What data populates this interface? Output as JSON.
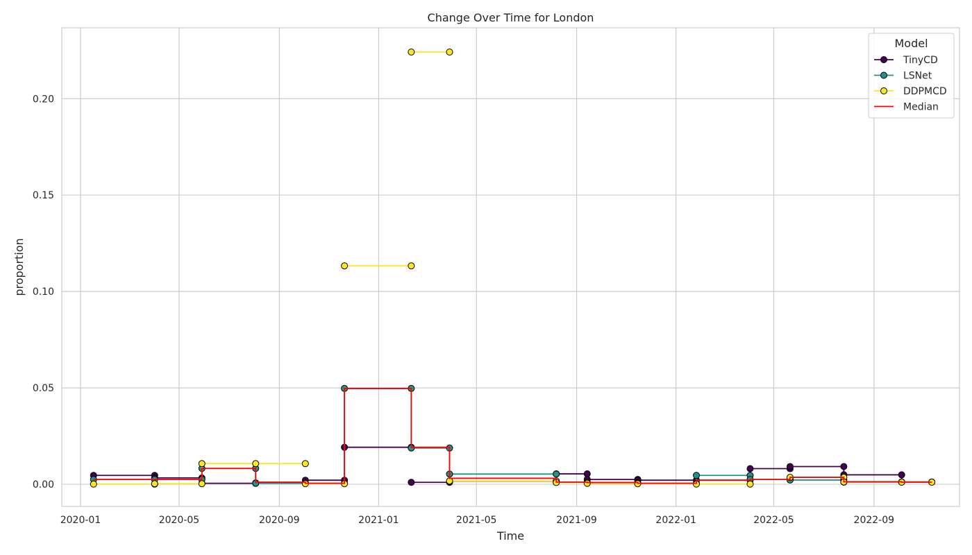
{
  "chart_data": {
    "type": "line",
    "title": "Change Over Time for London",
    "xlabel": "Time",
    "ylabel": "proportion",
    "x_axis_type": "date",
    "xlim": [
      "2019-12-09",
      "2022-12-15"
    ],
    "ylim": [
      -0.0115,
      0.2368
    ],
    "x_ticks": [
      "2020-01",
      "2020-05",
      "2020-09",
      "2021-01",
      "2021-05",
      "2021-09",
      "2022-01",
      "2022-05",
      "2022-09"
    ],
    "y_ticks": [
      "0.00",
      "0.05",
      "0.10",
      "0.15",
      "0.20"
    ],
    "grid": true,
    "step": "post",
    "legend": {
      "title": "Model",
      "placement": "top-right"
    },
    "series": [
      {
        "name": "TinyCD",
        "color": "#440154",
        "segments": [
          [
            {
              "x": "2020-01-17",
              "y": 0.0046
            },
            {
              "x": "2020-04-01",
              "y": 0.0046
            },
            {
              "x": "2020-04-01",
              "y": 0.0033
            },
            {
              "x": "2020-05-29",
              "y": 0.0033
            },
            {
              "x": "2020-05-29",
              "y": 0.0005
            },
            {
              "x": "2020-08-03",
              "y": 0.0005
            },
            {
              "x": "2020-08-03",
              "y": 0.0007
            },
            {
              "x": "2020-10-03",
              "y": 0.0007
            },
            {
              "x": "2020-10-03",
              "y": 0.0021
            },
            {
              "x": "2020-11-20",
              "y": 0.0021
            },
            {
              "x": "2020-11-20",
              "y": 0.0192
            },
            {
              "x": "2021-02-10",
              "y": 0.0192
            }
          ],
          [
            {
              "x": "2021-02-10",
              "y": 0.001
            },
            {
              "x": "2021-03-29",
              "y": 0.001
            },
            {
              "x": "2021-03-29",
              "y": 0.0016
            },
            {
              "x": "2021-08-07",
              "y": 0.0016
            },
            {
              "x": "2021-08-07",
              "y": 0.0054
            },
            {
              "x": "2021-09-14",
              "y": 0.0054
            },
            {
              "x": "2021-09-14",
              "y": 0.0025
            },
            {
              "x": "2021-11-15",
              "y": 0.0025
            },
            {
              "x": "2021-11-15",
              "y": 0.0021
            },
            {
              "x": "2022-01-26",
              "y": 0.0021
            },
            {
              "x": "2022-01-26",
              "y": 0.0021
            },
            {
              "x": "2022-04-02",
              "y": 0.0021
            },
            {
              "x": "2022-04-02",
              "y": 0.0081
            },
            {
              "x": "2022-05-21",
              "y": 0.0081
            },
            {
              "x": "2022-05-21",
              "y": 0.0092
            },
            {
              "x": "2022-07-26",
              "y": 0.0092
            },
            {
              "x": "2022-07-26",
              "y": 0.0049
            },
            {
              "x": "2022-10-05",
              "y": 0.0049
            },
            {
              "x": "2022-10-05",
              "y": 0.0012
            },
            {
              "x": "2022-11-11",
              "y": 0.0012
            }
          ]
        ]
      },
      {
        "name": "LSNet",
        "color": "#21918c",
        "segments": [
          [
            {
              "x": "2020-01-17",
              "y": 0.0025
            },
            {
              "x": "2020-04-01",
              "y": 0.0025
            },
            {
              "x": "2020-04-01",
              "y": 0.0025
            },
            {
              "x": "2020-05-29",
              "y": 0.0025
            },
            {
              "x": "2020-05-29",
              "y": 0.0082
            },
            {
              "x": "2020-08-03",
              "y": 0.0082
            },
            {
              "x": "2020-08-03",
              "y": 0.0005
            },
            {
              "x": "2020-10-03",
              "y": 0.0005
            },
            {
              "x": "2020-10-03",
              "y": 0.0005
            },
            {
              "x": "2020-11-20",
              "y": 0.0005
            },
            {
              "x": "2020-11-20",
              "y": 0.0497
            },
            {
              "x": "2021-02-10",
              "y": 0.0497
            },
            {
              "x": "2021-02-10",
              "y": 0.0188
            },
            {
              "x": "2021-03-29",
              "y": 0.0188
            },
            {
              "x": "2021-03-29",
              "y": 0.0053
            },
            {
              "x": "2021-08-07",
              "y": 0.0053
            },
            {
              "x": "2021-08-07",
              "y": 0.0011
            },
            {
              "x": "2021-09-14",
              "y": 0.0011
            },
            {
              "x": "2021-09-14",
              "y": 0.0009
            },
            {
              "x": "2021-11-15",
              "y": 0.0009
            },
            {
              "x": "2021-11-15",
              "y": 0.0005
            },
            {
              "x": "2022-01-26",
              "y": 0.0005
            },
            {
              "x": "2022-01-26",
              "y": 0.0046
            },
            {
              "x": "2022-04-02",
              "y": 0.0046
            },
            {
              "x": "2022-04-02",
              "y": 0.0025
            },
            {
              "x": "2022-05-21",
              "y": 0.0025
            },
            {
              "x": "2022-05-21",
              "y": 0.0022
            },
            {
              "x": "2022-07-26",
              "y": 0.0022
            },
            {
              "x": "2022-07-26",
              "y": 0.0011
            },
            {
              "x": "2022-10-05",
              "y": 0.0011
            },
            {
              "x": "2022-10-05",
              "y": 0.0011
            },
            {
              "x": "2022-11-11",
              "y": 0.0011
            }
          ]
        ]
      },
      {
        "name": "DDPMCD",
        "color": "#fde725",
        "segments": [
          [
            {
              "x": "2020-01-17",
              "y": 0.0001
            },
            {
              "x": "2020-04-01",
              "y": 0.0001
            },
            {
              "x": "2020-04-01",
              "y": 0.0003
            },
            {
              "x": "2020-05-29",
              "y": 0.0003
            },
            {
              "x": "2020-05-29",
              "y": 0.0107
            },
            {
              "x": "2020-08-03",
              "y": 0.0107
            },
            {
              "x": "2020-08-03",
              "y": 0.0107
            },
            {
              "x": "2020-10-03",
              "y": 0.0107
            }
          ],
          [
            {
              "x": "2020-10-03",
              "y": 0.0003
            },
            {
              "x": "2020-11-20",
              "y": 0.0003
            }
          ],
          [
            {
              "x": "2020-11-20",
              "y": 0.1133
            },
            {
              "x": "2021-02-10",
              "y": 0.1133
            }
          ],
          [
            {
              "x": "2021-02-10",
              "y": 0.2242
            },
            {
              "x": "2021-03-29",
              "y": 0.2242
            }
          ],
          [
            {
              "x": "2021-03-29",
              "y": 0.0017
            },
            {
              "x": "2021-08-07",
              "y": 0.0017
            },
            {
              "x": "2021-08-07",
              "y": 0.0009
            },
            {
              "x": "2021-09-14",
              "y": 0.0009
            },
            {
              "x": "2021-09-14",
              "y": 0.0005
            },
            {
              "x": "2021-11-15",
              "y": 0.0005
            },
            {
              "x": "2021-11-15",
              "y": 0.0003
            },
            {
              "x": "2022-01-26",
              "y": 0.0003
            },
            {
              "x": "2022-01-26",
              "y": 0.0001
            },
            {
              "x": "2022-04-02",
              "y": 0.0001
            }
          ],
          [
            {
              "x": "2022-05-21",
              "y": 0.0036
            },
            {
              "x": "2022-07-26",
              "y": 0.0036
            },
            {
              "x": "2022-07-26",
              "y": 0.0012
            },
            {
              "x": "2022-10-05",
              "y": 0.0012
            },
            {
              "x": "2022-10-05",
              "y": 0.0011
            },
            {
              "x": "2022-11-11",
              "y": 0.0011
            }
          ]
        ]
      },
      {
        "name": "Median",
        "color": "#ff0000",
        "markers": false,
        "segments": [
          [
            {
              "x": "2020-01-17",
              "y": 0.0025
            },
            {
              "x": "2020-04-01",
              "y": 0.0025
            },
            {
              "x": "2020-04-01",
              "y": 0.0025
            },
            {
              "x": "2020-05-29",
              "y": 0.0025
            },
            {
              "x": "2020-05-29",
              "y": 0.0082
            },
            {
              "x": "2020-08-03",
              "y": 0.0082
            },
            {
              "x": "2020-08-03",
              "y": 0.0011
            },
            {
              "x": "2020-10-03",
              "y": 0.0011
            },
            {
              "x": "2020-10-03",
              "y": 0.0005
            },
            {
              "x": "2020-11-20",
              "y": 0.0005
            },
            {
              "x": "2020-11-20",
              "y": 0.0497
            },
            {
              "x": "2021-02-10",
              "y": 0.0497
            },
            {
              "x": "2021-02-10",
              "y": 0.0192
            },
            {
              "x": "2021-03-29",
              "y": 0.0192
            },
            {
              "x": "2021-03-29",
              "y": 0.0031
            },
            {
              "x": "2021-08-07",
              "y": 0.0031
            },
            {
              "x": "2021-08-07",
              "y": 0.0011
            },
            {
              "x": "2021-09-14",
              "y": 0.0011
            },
            {
              "x": "2021-09-14",
              "y": 0.0009
            },
            {
              "x": "2021-11-15",
              "y": 0.0009
            },
            {
              "x": "2021-11-15",
              "y": 0.0005
            },
            {
              "x": "2022-01-26",
              "y": 0.0005
            },
            {
              "x": "2022-01-26",
              "y": 0.0021
            },
            {
              "x": "2022-04-02",
              "y": 0.0021
            },
            {
              "x": "2022-04-02",
              "y": 0.0025
            },
            {
              "x": "2022-05-21",
              "y": 0.0025
            },
            {
              "x": "2022-05-21",
              "y": 0.0036
            },
            {
              "x": "2022-07-26",
              "y": 0.0036
            },
            {
              "x": "2022-07-26",
              "y": 0.0013
            },
            {
              "x": "2022-10-05",
              "y": 0.0013
            },
            {
              "x": "2022-10-05",
              "y": 0.0011
            },
            {
              "x": "2022-11-11",
              "y": 0.0011
            }
          ]
        ]
      }
    ]
  }
}
